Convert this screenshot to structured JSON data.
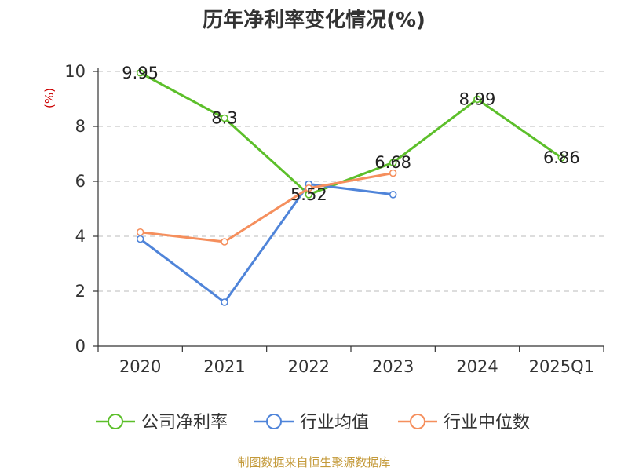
{
  "chart_data": {
    "type": "line",
    "title": "历年净利率变化情况(%)",
    "ylabel": "(%)",
    "ylim": [
      0,
      10
    ],
    "yticks": [
      0,
      2,
      4,
      6,
      8,
      10
    ],
    "grid": true,
    "categories": [
      "2020",
      "2021",
      "2022",
      "2023",
      "2024",
      "2025Q1"
    ],
    "series": [
      {
        "name": "公司净利率",
        "color": "#5CBF2A",
        "values": [
          9.95,
          8.3,
          5.52,
          6.68,
          8.99,
          6.86
        ],
        "labels": [
          "9.95",
          "8.3",
          "5.52",
          "6.68",
          "8.99",
          "6.86"
        ]
      },
      {
        "name": "行业均值",
        "color": "#4F84D9",
        "values": [
          3.9,
          1.6,
          5.9,
          5.52,
          null,
          null
        ]
      },
      {
        "name": "行业中位数",
        "color": "#F58F5D",
        "values": [
          4.15,
          3.8,
          5.75,
          6.3,
          null,
          null
        ]
      }
    ],
    "legend_position": "bottom",
    "source": "制图数据来自恒生聚源数据库",
    "source_color": "#C49A3A",
    "ylabel_color": "#CC0000"
  }
}
